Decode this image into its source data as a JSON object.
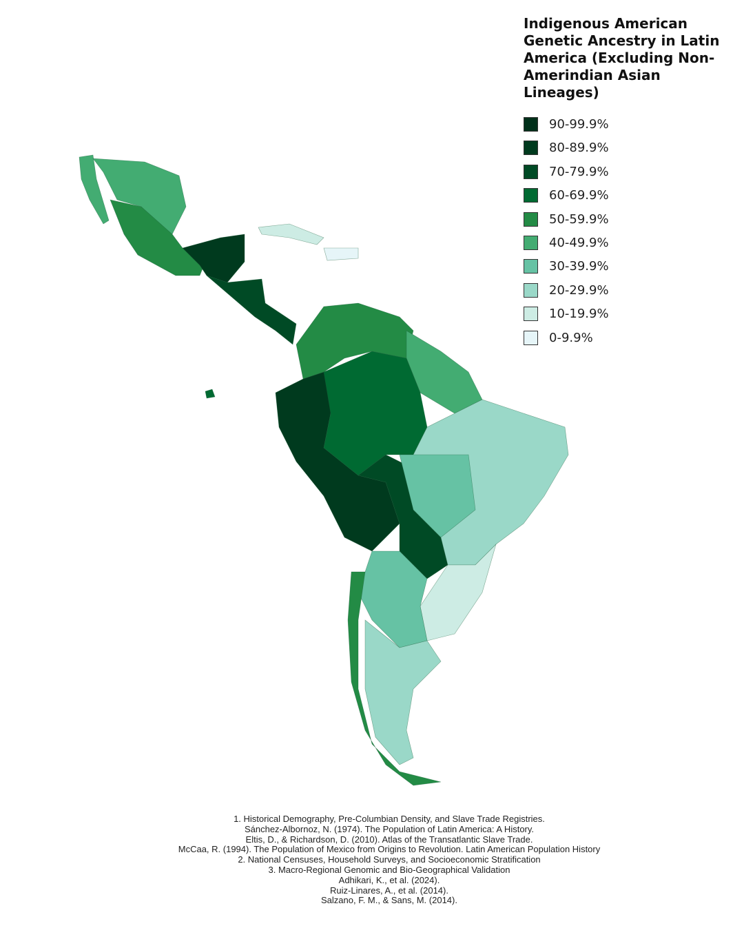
{
  "title": "Indigenous American Genetic Ancestry in Latin America (Excluding Non-Amerindian Asian Lineages)",
  "legend": {
    "items": [
      {
        "label": "90-99.9%",
        "color": "#00301a"
      },
      {
        "label": "80-89.9%",
        "color": "#003a1e"
      },
      {
        "label": "70-79.9%",
        "color": "#004a25"
      },
      {
        "label": "60-69.9%",
        "color": "#006a32"
      },
      {
        "label": "50-59.9%",
        "color": "#238b45"
      },
      {
        "label": "40-49.9%",
        "color": "#43ac72"
      },
      {
        "label": "30-39.9%",
        "color": "#66c2a4"
      },
      {
        "label": "20-29.9%",
        "color": "#9ad8c8"
      },
      {
        "label": "10-19.9%",
        "color": "#cdece4"
      },
      {
        "label": "0-9.9%",
        "color": "#e6f5f8"
      }
    ]
  },
  "sources": [
    "1. Historical Demography, Pre-Columbian Density, and Slave Trade Registries.",
    "Sánchez-Albornoz, N. (1974). The Population of Latin America: A History.",
    "Eltis, D., & Richardson, D. (2010). Atlas of the Transatlantic Slave Trade.",
    "McCaa, R. (1994). The Population of Mexico from Origins to Revolution. Latin American Population History",
    "2. National Censuses, Household Surveys, and Socioeconomic Stratification",
    "3. Macro-Regional Genomic and Bio-Geographical Validation",
    "Adhikari, K., et al. (2024).",
    "Ruiz-Linares, A., et al. (2014).",
    "Salzano, F. M., & Sans, M. (2014)."
  ]
}
